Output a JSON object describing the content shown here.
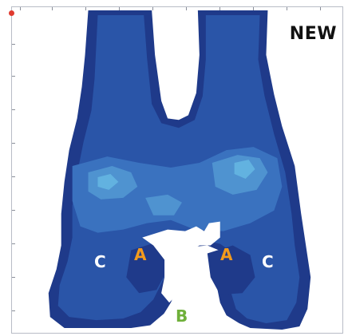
{
  "status_label": "NEW",
  "colors": {
    "background": "#ffffff",
    "level_1": "#1f3a8a",
    "level_2": "#2a55a8",
    "level_3": "#3a72bf",
    "level_4": "#4f93d0",
    "level_5": "#62b2e0",
    "label_a": "#f39a1c",
    "label_b": "#6fb03a",
    "label_c": "#ffffff",
    "status_text": "#111111",
    "origin_marker": "#e03a2f"
  },
  "zones": [
    {
      "label": "A",
      "color_key": "label_a"
    },
    {
      "label": "A",
      "color_key": "label_a"
    },
    {
      "label": "B",
      "color_key": "label_b"
    },
    {
      "label": "C",
      "color_key": "label_c"
    },
    {
      "label": "C",
      "color_key": "label_c"
    }
  ],
  "axes": {
    "ticks": 10
  }
}
